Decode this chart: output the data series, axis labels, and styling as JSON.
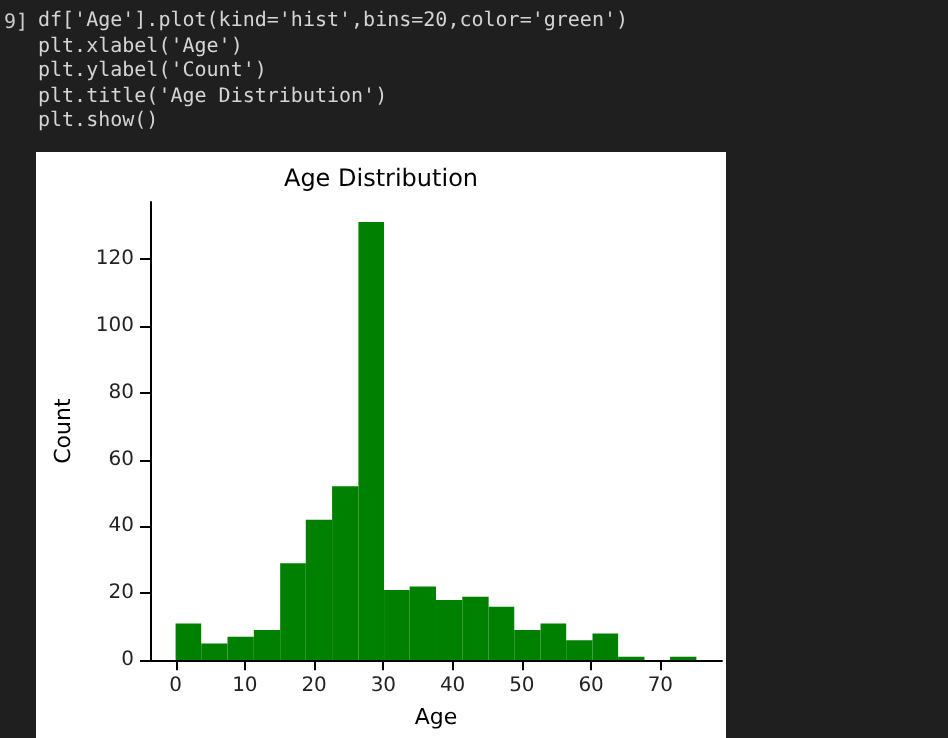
{
  "chart_data": {
    "type": "histogram",
    "title": "Age Distribution",
    "xlabel": "Age",
    "ylabel": "Count",
    "bins": [
      0,
      3.7,
      7.5,
      11.3,
      15.1,
      18.8,
      22.6,
      26.4,
      30.1,
      33.8,
      37.6,
      41.4,
      45.2,
      48.9,
      52.7,
      56.4,
      60.2,
      63.9,
      67.7,
      71.4,
      75.2
    ],
    "values": [
      11,
      5,
      7,
      9,
      29,
      42,
      52,
      131,
      21,
      22,
      18,
      19,
      16,
      9,
      11,
      6,
      8,
      1,
      0,
      1
    ],
    "color": "#008000",
    "xlim": [
      -3.7,
      78.9
    ],
    "xticks": [
      0,
      10,
      20,
      30,
      40,
      50,
      60,
      70
    ],
    "ylim": [
      0,
      137
    ],
    "yticks": [
      0,
      20,
      40,
      60,
      80,
      100,
      120
    ],
    "grid": false,
    "annotations": [
      "9]",
      "df['Age'].plot(kind='hist',bins=20,color='green')",
      "plt.xlabel('Age')",
      "plt.ylabel('Count')",
      "plt.title('Age Distribution')",
      "plt.show()"
    ]
  }
}
